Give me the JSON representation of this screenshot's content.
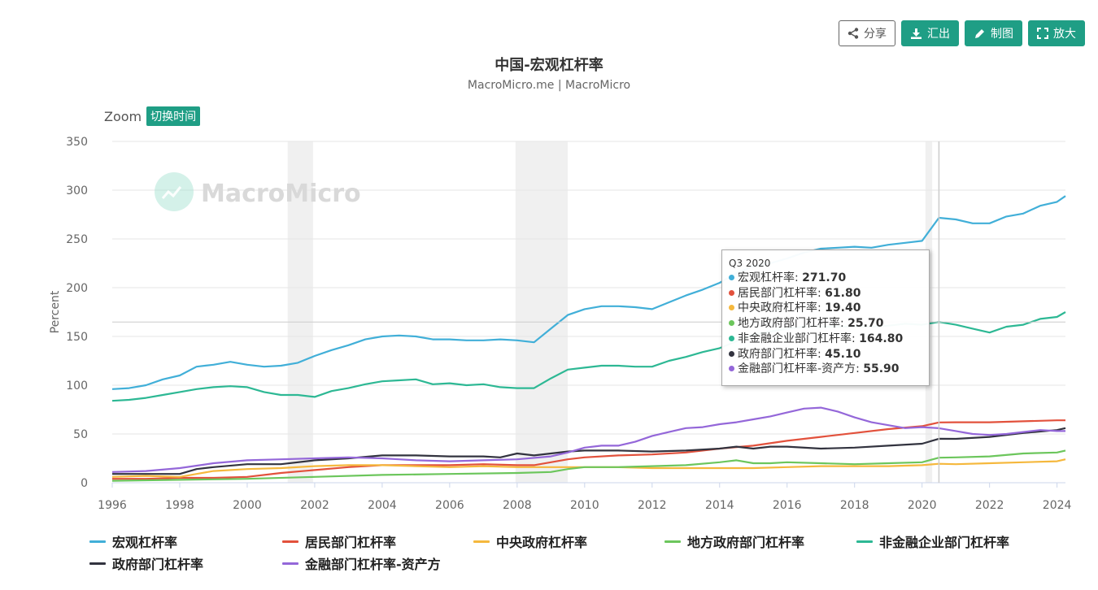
{
  "toolbar": {
    "share_label": "分享",
    "export_label": "汇出",
    "draw_label": "制图",
    "enlarge_label": "放大",
    "share_icon": "share-icon",
    "export_icon": "download-icon",
    "draw_icon": "pencil-icon",
    "enlarge_icon": "fullscreen-icon",
    "accent": "#1f9e85"
  },
  "zoom": {
    "label": "Zoom",
    "toggle_label": "切换时间"
  },
  "watermark": "MacroMicro",
  "tooltip": {
    "period": "Q3 2020",
    "rows": [
      {
        "name": "宏观杠杆率",
        "value": "271.70",
        "color": "#41afd8"
      },
      {
        "name": "居民部门杠杆率",
        "value": "61.80",
        "color": "#e2513c"
      },
      {
        "name": "中央政府杠杆率",
        "value": "19.40",
        "color": "#f5b83d"
      },
      {
        "name": "地方政府部门杠杆率",
        "value": "25.70",
        "color": "#6cc65c"
      },
      {
        "name": "非金融企业部门杠杆率",
        "value": "164.80",
        "color": "#2db894"
      },
      {
        "name": "政府部门杠杆率",
        "value": "45.10",
        "color": "#32333f"
      },
      {
        "name": "金融部门杠杆率-资产方",
        "value": "55.90",
        "color": "#9467d9"
      }
    ]
  },
  "chart_data": {
    "type": "line",
    "title": "中国-宏观杠杆率",
    "subtitle": "MacroMicro.me | MacroMicro",
    "ylabel": "Percent",
    "xlabel": "",
    "ylim": [
      0,
      350
    ],
    "yticks": [
      0,
      50,
      100,
      150,
      200,
      250,
      300,
      350
    ],
    "xlim": [
      1996.0,
      2024.25
    ],
    "xticks": [
      1996,
      1998,
      2000,
      2002,
      2004,
      2006,
      2008,
      2010,
      2012,
      2014,
      2016,
      2018,
      2020,
      2022,
      2024
    ],
    "grid": true,
    "legend_position": "bottom",
    "recession_shading": [
      [
        2001.2,
        2001.95
      ],
      [
        2007.95,
        2009.5
      ],
      [
        2020.1,
        2020.3
      ]
    ],
    "crosshair_x": 2020.5,
    "series": [
      {
        "name": "宏观杠杆率",
        "color": "#41afd8",
        "x": [
          1996,
          1996.5,
          1997,
          1997.5,
          1998,
          1998.5,
          1999,
          1999.5,
          2000,
          2000.5,
          2001,
          2001.5,
          2002,
          2002.5,
          2003,
          2003.5,
          2004,
          2004.5,
          2005,
          2005.5,
          2006,
          2006.5,
          2007,
          2007.5,
          2008,
          2008.5,
          2009,
          2009.5,
          2010,
          2010.5,
          2011,
          2011.5,
          2012,
          2012.5,
          2013,
          2013.5,
          2014,
          2014.5,
          2015,
          2015.5,
          2016,
          2016.5,
          2017,
          2017.5,
          2018,
          2018.5,
          2019,
          2019.5,
          2020,
          2020.5,
          2021,
          2021.5,
          2022,
          2022.5,
          2023,
          2023.5,
          2024,
          2024.25
        ],
        "y": [
          96,
          97,
          100,
          106,
          110,
          119,
          121,
          124,
          121,
          119,
          120,
          123,
          130,
          136,
          141,
          147,
          150,
          151,
          150,
          147,
          147,
          146,
          146,
          147,
          146,
          144,
          158,
          172,
          178,
          181,
          181,
          180,
          178,
          185,
          192,
          198,
          205,
          215,
          222,
          225,
          230,
          236,
          240,
          241,
          242,
          241,
          244,
          246,
          248,
          271.7,
          270,
          266,
          266,
          273,
          276,
          284,
          288,
          294
        ]
      },
      {
        "name": "居民部门杠杆率",
        "color": "#e2513c",
        "x": [
          1996,
          1997,
          1998,
          1999,
          2000,
          2001,
          2002,
          2003,
          2004,
          2005,
          2006,
          2007,
          2008,
          2008.5,
          2009,
          2009.5,
          2010,
          2011,
          2012,
          2013,
          2014,
          2015,
          2016,
          2017,
          2018,
          2019,
          2020,
          2020.5,
          2021,
          2022,
          2023,
          2024,
          2024.25
        ],
        "y": [
          4,
          4,
          5,
          5,
          6,
          10,
          13,
          16,
          18,
          18,
          18,
          19,
          18,
          18,
          21,
          24,
          26,
          28,
          29,
          31,
          35,
          38,
          43,
          47,
          51,
          55,
          58,
          61.8,
          62,
          62,
          63,
          64,
          64
        ]
      },
      {
        "name": "中央政府杠杆率",
        "color": "#f5b83d",
        "x": [
          1996,
          1997,
          1998,
          1998.5,
          1999,
          2000,
          2001,
          2002,
          2003,
          2004,
          2005,
          2006,
          2007,
          2008,
          2009,
          2009.5,
          2010,
          2011,
          2012,
          2013,
          2014,
          2015,
          2016,
          2017,
          2018,
          2019,
          2020,
          2020.5,
          2021,
          2022,
          2023,
          2024,
          2024.25
        ],
        "y": [
          6,
          7,
          6,
          9,
          12,
          14,
          15,
          17,
          18,
          18,
          17,
          16,
          17,
          16,
          16,
          16,
          16,
          16,
          15,
          15,
          15,
          15,
          16,
          17,
          17,
          17,
          18,
          19.4,
          19,
          20,
          21,
          22,
          24
        ]
      },
      {
        "name": "地方政府部门杠杆率",
        "color": "#6cc65c",
        "x": [
          1996,
          1998,
          2000,
          2002,
          2004,
          2006,
          2008,
          2009,
          2009.5,
          2010,
          2011,
          2012,
          2013,
          2014,
          2014.5,
          2015,
          2015.5,
          2016,
          2017,
          2018,
          2019,
          2020,
          2020.5,
          2021,
          2022,
          2023,
          2024,
          2024.25
        ],
        "y": [
          2,
          3,
          4,
          6,
          8,
          9,
          10,
          11,
          14,
          16,
          16,
          17,
          18,
          21,
          23,
          20,
          20,
          21,
          20,
          19,
          20,
          21,
          25.7,
          26,
          27,
          30,
          31,
          33
        ]
      },
      {
        "name": "非金融企业部门杠杆率",
        "color": "#2db894",
        "x": [
          1996,
          1996.5,
          1997,
          1997.5,
          1998,
          1998.5,
          1999,
          1999.5,
          2000,
          2000.5,
          2001,
          2001.5,
          2002,
          2002.5,
          2003,
          2003.5,
          2004,
          2004.5,
          2005,
          2005.5,
          2006,
          2006.5,
          2007,
          2007.5,
          2008,
          2008.5,
          2009,
          2009.5,
          2010,
          2010.5,
          2011,
          2011.5,
          2012,
          2012.5,
          2013,
          2013.5,
          2014,
          2014.5,
          2015,
          2015.5,
          2016,
          2016.5,
          2017,
          2017.5,
          2018,
          2018.5,
          2019,
          2019.5,
          2020,
          2020.5,
          2021,
          2021.5,
          2022,
          2022.5,
          2023,
          2023.5,
          2024,
          2024.25
        ],
        "y": [
          84,
          85,
          87,
          90,
          93,
          96,
          98,
          99,
          98,
          93,
          90,
          90,
          88,
          94,
          97,
          101,
          104,
          105,
          106,
          101,
          102,
          100,
          101,
          98,
          97,
          97,
          107,
          116,
          118,
          120,
          120,
          119,
          119,
          125,
          129,
          134,
          138,
          145,
          152,
          155,
          158,
          160,
          160,
          160,
          160,
          160,
          161,
          163,
          162,
          164.8,
          162,
          158,
          154,
          160,
          162,
          168,
          170,
          175
        ]
      },
      {
        "name": "政府部门杠杆率",
        "color": "#32333f",
        "x": [
          1996,
          1997,
          1998,
          1998.5,
          1999,
          2000,
          2001,
          2002,
          2003,
          2004,
          2005,
          2006,
          2007,
          2007.5,
          2008,
          2008.5,
          2009,
          2009.5,
          2010,
          2011,
          2012,
          2013,
          2014,
          2014.5,
          2015,
          2015.5,
          2016,
          2017,
          2018,
          2019,
          2020,
          2020.5,
          2021,
          2022,
          2023,
          2024,
          2024.25
        ],
        "y": [
          9,
          9,
          9,
          14,
          16,
          19,
          19,
          23,
          25,
          28,
          28,
          27,
          27,
          26,
          30,
          28,
          30,
          32,
          33,
          33,
          32,
          33,
          35,
          37,
          35,
          37,
          37,
          35,
          36,
          38,
          40,
          45.1,
          45,
          47,
          51,
          54,
          56
        ]
      },
      {
        "name": "金融部门杠杆率-资产方",
        "color": "#9467d9",
        "x": [
          1996,
          1997,
          1998,
          1999,
          2000,
          2001,
          2002,
          2003,
          2004,
          2004.5,
          2005,
          2006,
          2007,
          2008,
          2009,
          2009.5,
          2010,
          2010.5,
          2011,
          2011.5,
          2012,
          2012.5,
          2013,
          2013.5,
          2014,
          2014.5,
          2015,
          2015.5,
          2016,
          2016.5,
          2017,
          2017.5,
          2018,
          2018.5,
          2019,
          2019.5,
          2020,
          2020.5,
          2021,
          2021.5,
          2022,
          2022.5,
          2023,
          2023.5,
          2024,
          2024.25
        ],
        "y": [
          11,
          12,
          15,
          20,
          23,
          24,
          25,
          26,
          25,
          24,
          23,
          22,
          23,
          24,
          27,
          31,
          36,
          38,
          38,
          42,
          48,
          52,
          56,
          57,
          60,
          62,
          65,
          68,
          72,
          76,
          77,
          73,
          67,
          62,
          59,
          56,
          57,
          55.9,
          53,
          50,
          49,
          50,
          52,
          54,
          53,
          53
        ]
      }
    ]
  }
}
